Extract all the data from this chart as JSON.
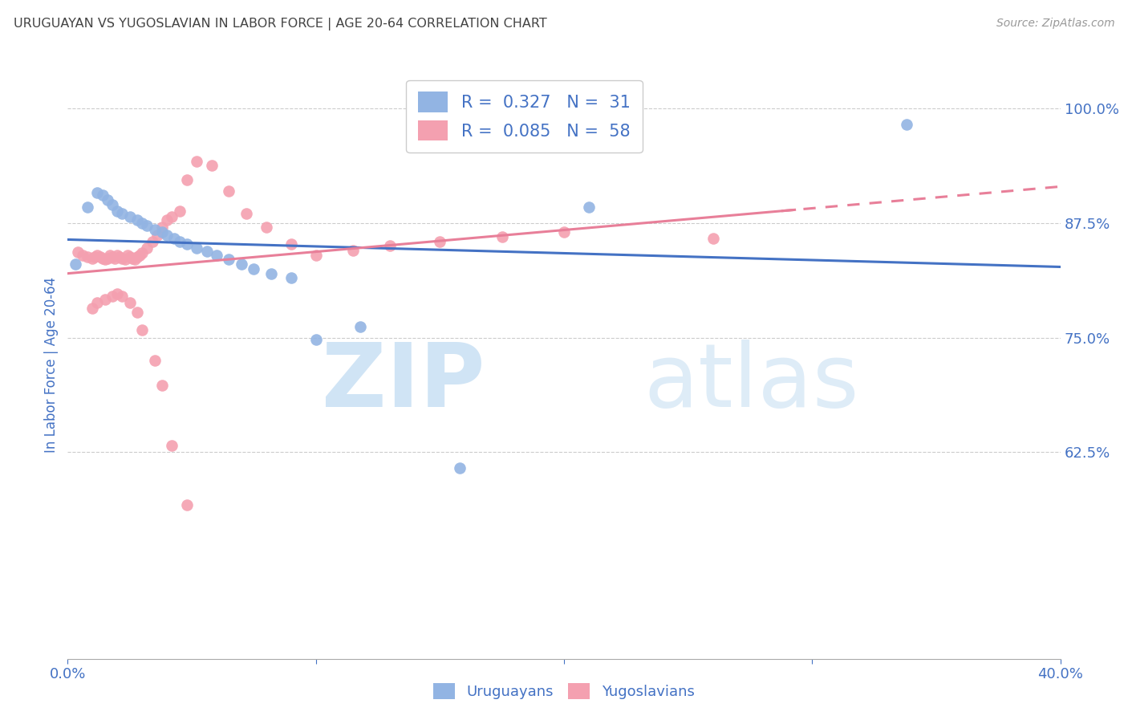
{
  "title": "URUGUAYAN VS YUGOSLAVIAN IN LABOR FORCE | AGE 20-64 CORRELATION CHART",
  "source": "Source: ZipAtlas.com",
  "ylabel": "In Labor Force | Age 20-64",
  "xlim": [
    0.0,
    0.4
  ],
  "ylim": [
    0.4,
    1.04
  ],
  "yticks": [
    1.0,
    0.875,
    0.75,
    0.625
  ],
  "ytick_labels": [
    "100.0%",
    "87.5%",
    "75.0%",
    "62.5%"
  ],
  "xticks": [
    0.0,
    0.1,
    0.2,
    0.3,
    0.4
  ],
  "xtick_labels": [
    "0.0%",
    "",
    "",
    "",
    "40.0%"
  ],
  "blue_color": "#92B4E3",
  "pink_color": "#F4A0B0",
  "blue_line_color": "#4472C4",
  "pink_line_color": "#E87F99",
  "text_blue": "#4472C4",
  "R_blue": 0.327,
  "N_blue": 31,
  "R_pink": 0.085,
  "N_pink": 58,
  "uruguayan_x": [
    0.003,
    0.008,
    0.012,
    0.015,
    0.018,
    0.02,
    0.022,
    0.024,
    0.026,
    0.028,
    0.03,
    0.032,
    0.034,
    0.036,
    0.038,
    0.04,
    0.042,
    0.044,
    0.048,
    0.052,
    0.058,
    0.062,
    0.068,
    0.072,
    0.078,
    0.085,
    0.095,
    0.115,
    0.158,
    0.208,
    0.338
  ],
  "uruguayan_y": [
    0.83,
    0.895,
    0.91,
    0.905,
    0.9,
    0.895,
    0.892,
    0.888,
    0.886,
    0.885,
    0.882,
    0.878,
    0.876,
    0.872,
    0.87,
    0.868,
    0.865,
    0.862,
    0.858,
    0.852,
    0.848,
    0.842,
    0.838,
    0.835,
    0.83,
    0.748,
    0.698,
    0.765,
    0.608,
    0.89,
    0.98
  ],
  "yugoslavian_x": [
    0.003,
    0.005,
    0.007,
    0.009,
    0.01,
    0.011,
    0.012,
    0.013,
    0.014,
    0.015,
    0.016,
    0.017,
    0.018,
    0.019,
    0.02,
    0.021,
    0.022,
    0.023,
    0.024,
    0.025,
    0.026,
    0.027,
    0.028,
    0.029,
    0.03,
    0.032,
    0.034,
    0.036,
    0.038,
    0.04,
    0.042,
    0.045,
    0.048,
    0.052,
    0.056,
    0.06,
    0.065,
    0.072,
    0.08,
    0.09,
    0.1,
    0.115,
    0.13,
    0.15,
    0.175,
    0.2,
    0.26,
    0.012,
    0.016,
    0.02,
    0.024,
    0.028,
    0.032,
    0.036,
    0.04,
    0.044,
    0.048,
    0.052
  ],
  "yugoslavian_y": [
    0.845,
    0.84,
    0.838,
    0.836,
    0.835,
    0.836,
    0.838,
    0.84,
    0.838,
    0.836,
    0.835,
    0.834,
    0.836,
    0.838,
    0.84,
    0.838,
    0.836,
    0.835,
    0.836,
    0.84,
    0.838,
    0.836,
    0.835,
    0.84,
    0.838,
    0.852,
    0.858,
    0.862,
    0.87,
    0.878,
    0.88,
    0.888,
    0.92,
    0.94,
    0.935,
    0.92,
    0.908,
    0.882,
    0.868,
    0.852,
    0.838,
    0.845,
    0.848,
    0.855,
    0.858,
    0.862,
    0.855,
    0.78,
    0.788,
    0.792,
    0.798,
    0.8,
    0.795,
    0.792,
    0.788,
    0.778,
    0.758,
    0.728
  ]
}
